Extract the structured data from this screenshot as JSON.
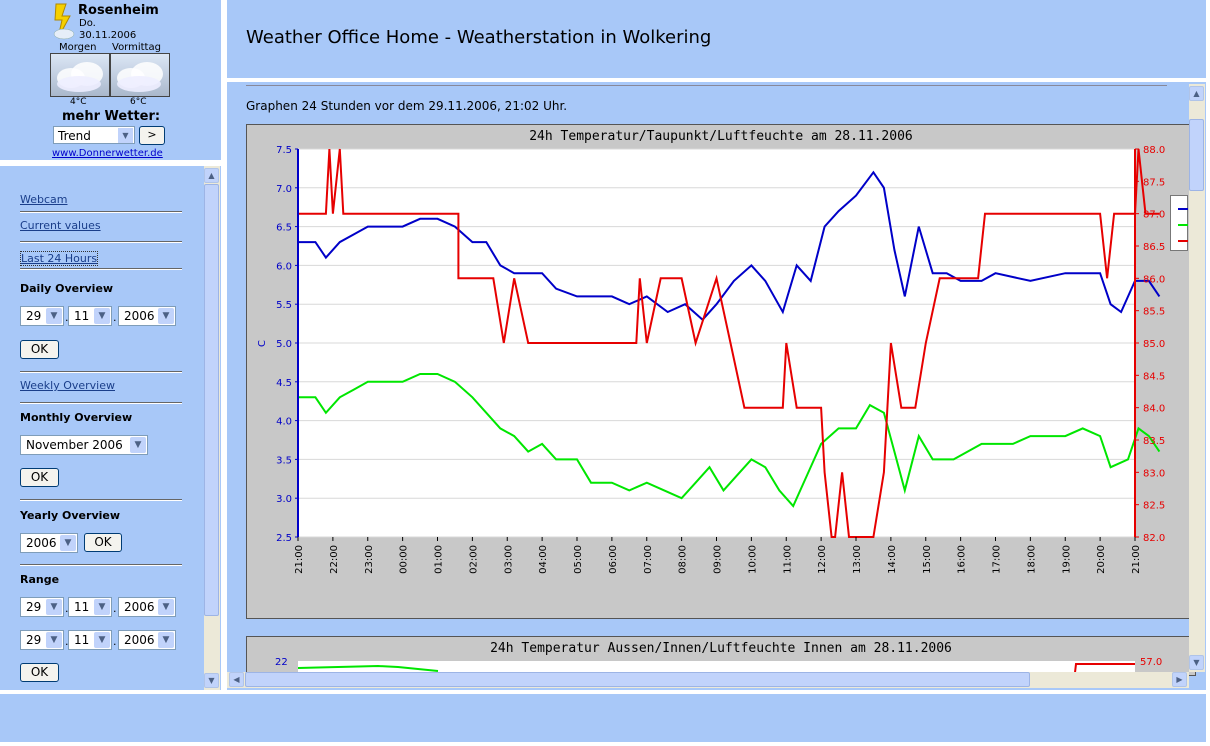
{
  "widget": {
    "city": "Rosenheim",
    "day": "Do.",
    "date": "30.11.2006",
    "periods": [
      {
        "label": "Morgen",
        "temp": "4°C"
      },
      {
        "label": "Vormittag",
        "temp": "6°C"
      }
    ],
    "more_label": "mehr Wetter:",
    "select_value": "Trend",
    "go_label": ">",
    "link": "www.Donnerwetter.de"
  },
  "nav": {
    "links": {
      "webcam": "Webcam",
      "current": "Current values",
      "last24": "Last 24 Hours",
      "weekly": "Weekly Overview"
    },
    "daily": {
      "heading": "Daily Overview",
      "day": "29",
      "month": "11",
      "year": "2006",
      "ok": "OK"
    },
    "monthly": {
      "heading": "Monthly Overview",
      "value": "November 2006",
      "ok": "OK"
    },
    "yearly": {
      "heading": "Yearly Overview",
      "value": "2006",
      "ok": "OK"
    },
    "range": {
      "heading": "Range",
      "from": {
        "day": "29",
        "month": "11",
        "year": "2006"
      },
      "to": {
        "day": "29",
        "month": "11",
        "year": "2006"
      },
      "ok": "OK"
    },
    "dot": "."
  },
  "header": {
    "title": "Weather Office Home - Weatherstation in Wolkering"
  },
  "main": {
    "subtitle": "Graphen 24 Stunden vor dem 29.11.2006, 21:02 Uhr.",
    "chart2_title": "24h Temperatur Aussen/Innen/Luftfeuchte Innen am 28.11.2006",
    "chart2_left_tick": "22",
    "chart2_right_tick": "57.0"
  },
  "colors": {
    "blue": "#0000c8",
    "green": "#00e600",
    "red": "#e60000",
    "pane": "#a8c8f8"
  },
  "chart_data": {
    "type": "line",
    "title": "24h Temperatur/Taupunkt/Luftfeuchte am 28.11.2006",
    "ylabel": "C",
    "ylim": [
      2.5,
      7.5
    ],
    "y2lim": [
      82.0,
      88.0
    ],
    "yticks": [
      "2.5",
      "3.0",
      "3.5",
      "4.0",
      "4.5",
      "5.0",
      "5.5",
      "6.0",
      "6.5",
      "7.0",
      "7.5"
    ],
    "y2ticks": [
      "82.0",
      "82.5",
      "83.0",
      "83.5",
      "84.0",
      "84.5",
      "85.0",
      "85.5",
      "86.0",
      "86.5",
      "87.0",
      "87.5",
      "88.0"
    ],
    "xticks": [
      "21:00",
      "22:00",
      "23:00",
      "00:00",
      "01:00",
      "02:00",
      "03:00",
      "04:00",
      "05:00",
      "06:00",
      "07:00",
      "08:00",
      "09:00",
      "10:00",
      "11:00",
      "12:00",
      "13:00",
      "14:00",
      "15:00",
      "16:00",
      "17:00",
      "18:00",
      "19:00",
      "20:00",
      "21:00"
    ],
    "series": [
      {
        "color": "#0000c8",
        "axis": "left",
        "points": [
          [
            0,
            6.3
          ],
          [
            0.5,
            6.3
          ],
          [
            0.8,
            6.1
          ],
          [
            1.2,
            6.3
          ],
          [
            1.6,
            6.4
          ],
          [
            2.0,
            6.5
          ],
          [
            2.6,
            6.5
          ],
          [
            3.0,
            6.5
          ],
          [
            3.5,
            6.6
          ],
          [
            4.0,
            6.6
          ],
          [
            4.5,
            6.5
          ],
          [
            5.0,
            6.3
          ],
          [
            5.4,
            6.3
          ],
          [
            5.8,
            6.0
          ],
          [
            6.2,
            5.9
          ],
          [
            7.0,
            5.9
          ],
          [
            7.4,
            5.7
          ],
          [
            8.0,
            5.6
          ],
          [
            9.0,
            5.6
          ],
          [
            9.5,
            5.5
          ],
          [
            10.0,
            5.6
          ],
          [
            10.6,
            5.4
          ],
          [
            11.1,
            5.5
          ],
          [
            11.6,
            5.3
          ],
          [
            12.0,
            5.5
          ],
          [
            12.5,
            5.8
          ],
          [
            13.0,
            6.0
          ],
          [
            13.4,
            5.8
          ],
          [
            13.9,
            5.4
          ],
          [
            14.3,
            6.0
          ],
          [
            14.7,
            5.8
          ],
          [
            15.1,
            6.5
          ],
          [
            15.5,
            6.7
          ],
          [
            16.0,
            6.9
          ],
          [
            16.5,
            7.2
          ],
          [
            16.8,
            7.0
          ],
          [
            17.1,
            6.2
          ],
          [
            17.4,
            5.6
          ],
          [
            17.8,
            6.5
          ],
          [
            18.2,
            5.9
          ],
          [
            18.6,
            5.9
          ],
          [
            19.0,
            5.8
          ],
          [
            19.6,
            5.8
          ],
          [
            20.0,
            5.9
          ],
          [
            21.0,
            5.8
          ],
          [
            22.0,
            5.9
          ],
          [
            23.0,
            5.9
          ],
          [
            23.3,
            5.5
          ],
          [
            23.6,
            5.4
          ],
          [
            24.0,
            5.8
          ],
          [
            24.4,
            5.8
          ],
          [
            24.7,
            5.6
          ]
        ]
      },
      {
        "color": "#00e600",
        "axis": "left",
        "points": [
          [
            0,
            4.3
          ],
          [
            0.5,
            4.3
          ],
          [
            0.8,
            4.1
          ],
          [
            1.2,
            4.3
          ],
          [
            1.6,
            4.4
          ],
          [
            2.0,
            4.5
          ],
          [
            2.6,
            4.5
          ],
          [
            3.0,
            4.5
          ],
          [
            3.5,
            4.6
          ],
          [
            4.0,
            4.6
          ],
          [
            4.5,
            4.5
          ],
          [
            5.0,
            4.3
          ],
          [
            5.4,
            4.1
          ],
          [
            5.8,
            3.9
          ],
          [
            6.2,
            3.8
          ],
          [
            6.6,
            3.6
          ],
          [
            7.0,
            3.7
          ],
          [
            7.4,
            3.5
          ],
          [
            8.0,
            3.5
          ],
          [
            8.4,
            3.2
          ],
          [
            9.0,
            3.2
          ],
          [
            9.5,
            3.1
          ],
          [
            10.0,
            3.2
          ],
          [
            10.5,
            3.1
          ],
          [
            11.0,
            3.0
          ],
          [
            11.4,
            3.2
          ],
          [
            11.8,
            3.4
          ],
          [
            12.2,
            3.1
          ],
          [
            12.6,
            3.3
          ],
          [
            13.0,
            3.5
          ],
          [
            13.4,
            3.4
          ],
          [
            13.8,
            3.1
          ],
          [
            14.2,
            2.9
          ],
          [
            14.6,
            3.3
          ],
          [
            15.0,
            3.7
          ],
          [
            15.5,
            3.9
          ],
          [
            16.0,
            3.9
          ],
          [
            16.4,
            4.2
          ],
          [
            16.8,
            4.1
          ],
          [
            17.1,
            3.6
          ],
          [
            17.4,
            3.1
          ],
          [
            17.8,
            3.8
          ],
          [
            18.2,
            3.5
          ],
          [
            18.8,
            3.5
          ],
          [
            19.2,
            3.6
          ],
          [
            19.6,
            3.7
          ],
          [
            20.5,
            3.7
          ],
          [
            21.0,
            3.8
          ],
          [
            22.0,
            3.8
          ],
          [
            22.5,
            3.9
          ],
          [
            23.0,
            3.8
          ],
          [
            23.3,
            3.4
          ],
          [
            23.8,
            3.5
          ],
          [
            24.1,
            3.9
          ],
          [
            24.4,
            3.8
          ],
          [
            24.7,
            3.6
          ]
        ]
      },
      {
        "color": "#e60000",
        "axis": "right",
        "points": [
          [
            0,
            87.0
          ],
          [
            0.8,
            87.0
          ],
          [
            0.9,
            88.0
          ],
          [
            1.0,
            87.0
          ],
          [
            1.2,
            88.0
          ],
          [
            1.3,
            87.0
          ],
          [
            4.6,
            87.0
          ],
          [
            4.6,
            86.0
          ],
          [
            5.6,
            86.0
          ],
          [
            5.9,
            85.0
          ],
          [
            6.2,
            86.0
          ],
          [
            6.6,
            85.0
          ],
          [
            8.0,
            85.0
          ],
          [
            9.7,
            85.0
          ],
          [
            9.8,
            86.0
          ],
          [
            10.0,
            85.0
          ],
          [
            10.4,
            86.0
          ],
          [
            11.0,
            86.0
          ],
          [
            11.4,
            85.0
          ],
          [
            12.0,
            86.0
          ],
          [
            12.4,
            85.0
          ],
          [
            12.8,
            84.0
          ],
          [
            13.9,
            84.0
          ],
          [
            14.0,
            85.0
          ],
          [
            14.3,
            84.0
          ],
          [
            15.0,
            84.0
          ],
          [
            15.1,
            83.0
          ],
          [
            15.3,
            82.0
          ],
          [
            15.4,
            82.0
          ],
          [
            15.6,
            83.0
          ],
          [
            15.8,
            82.0
          ],
          [
            16.0,
            82.0
          ],
          [
            16.5,
            82.0
          ],
          [
            16.8,
            83.0
          ],
          [
            17.0,
            85.0
          ],
          [
            17.3,
            84.0
          ],
          [
            17.7,
            84.0
          ],
          [
            18.0,
            85.0
          ],
          [
            18.4,
            86.0
          ],
          [
            19.5,
            86.0
          ],
          [
            19.7,
            87.0
          ],
          [
            23.0,
            87.0
          ],
          [
            23.2,
            86.0
          ],
          [
            23.4,
            87.0
          ],
          [
            24.0,
            87.0
          ],
          [
            24.1,
            88.0
          ],
          [
            24.3,
            87.0
          ],
          [
            24.7,
            87.0
          ]
        ]
      }
    ]
  }
}
